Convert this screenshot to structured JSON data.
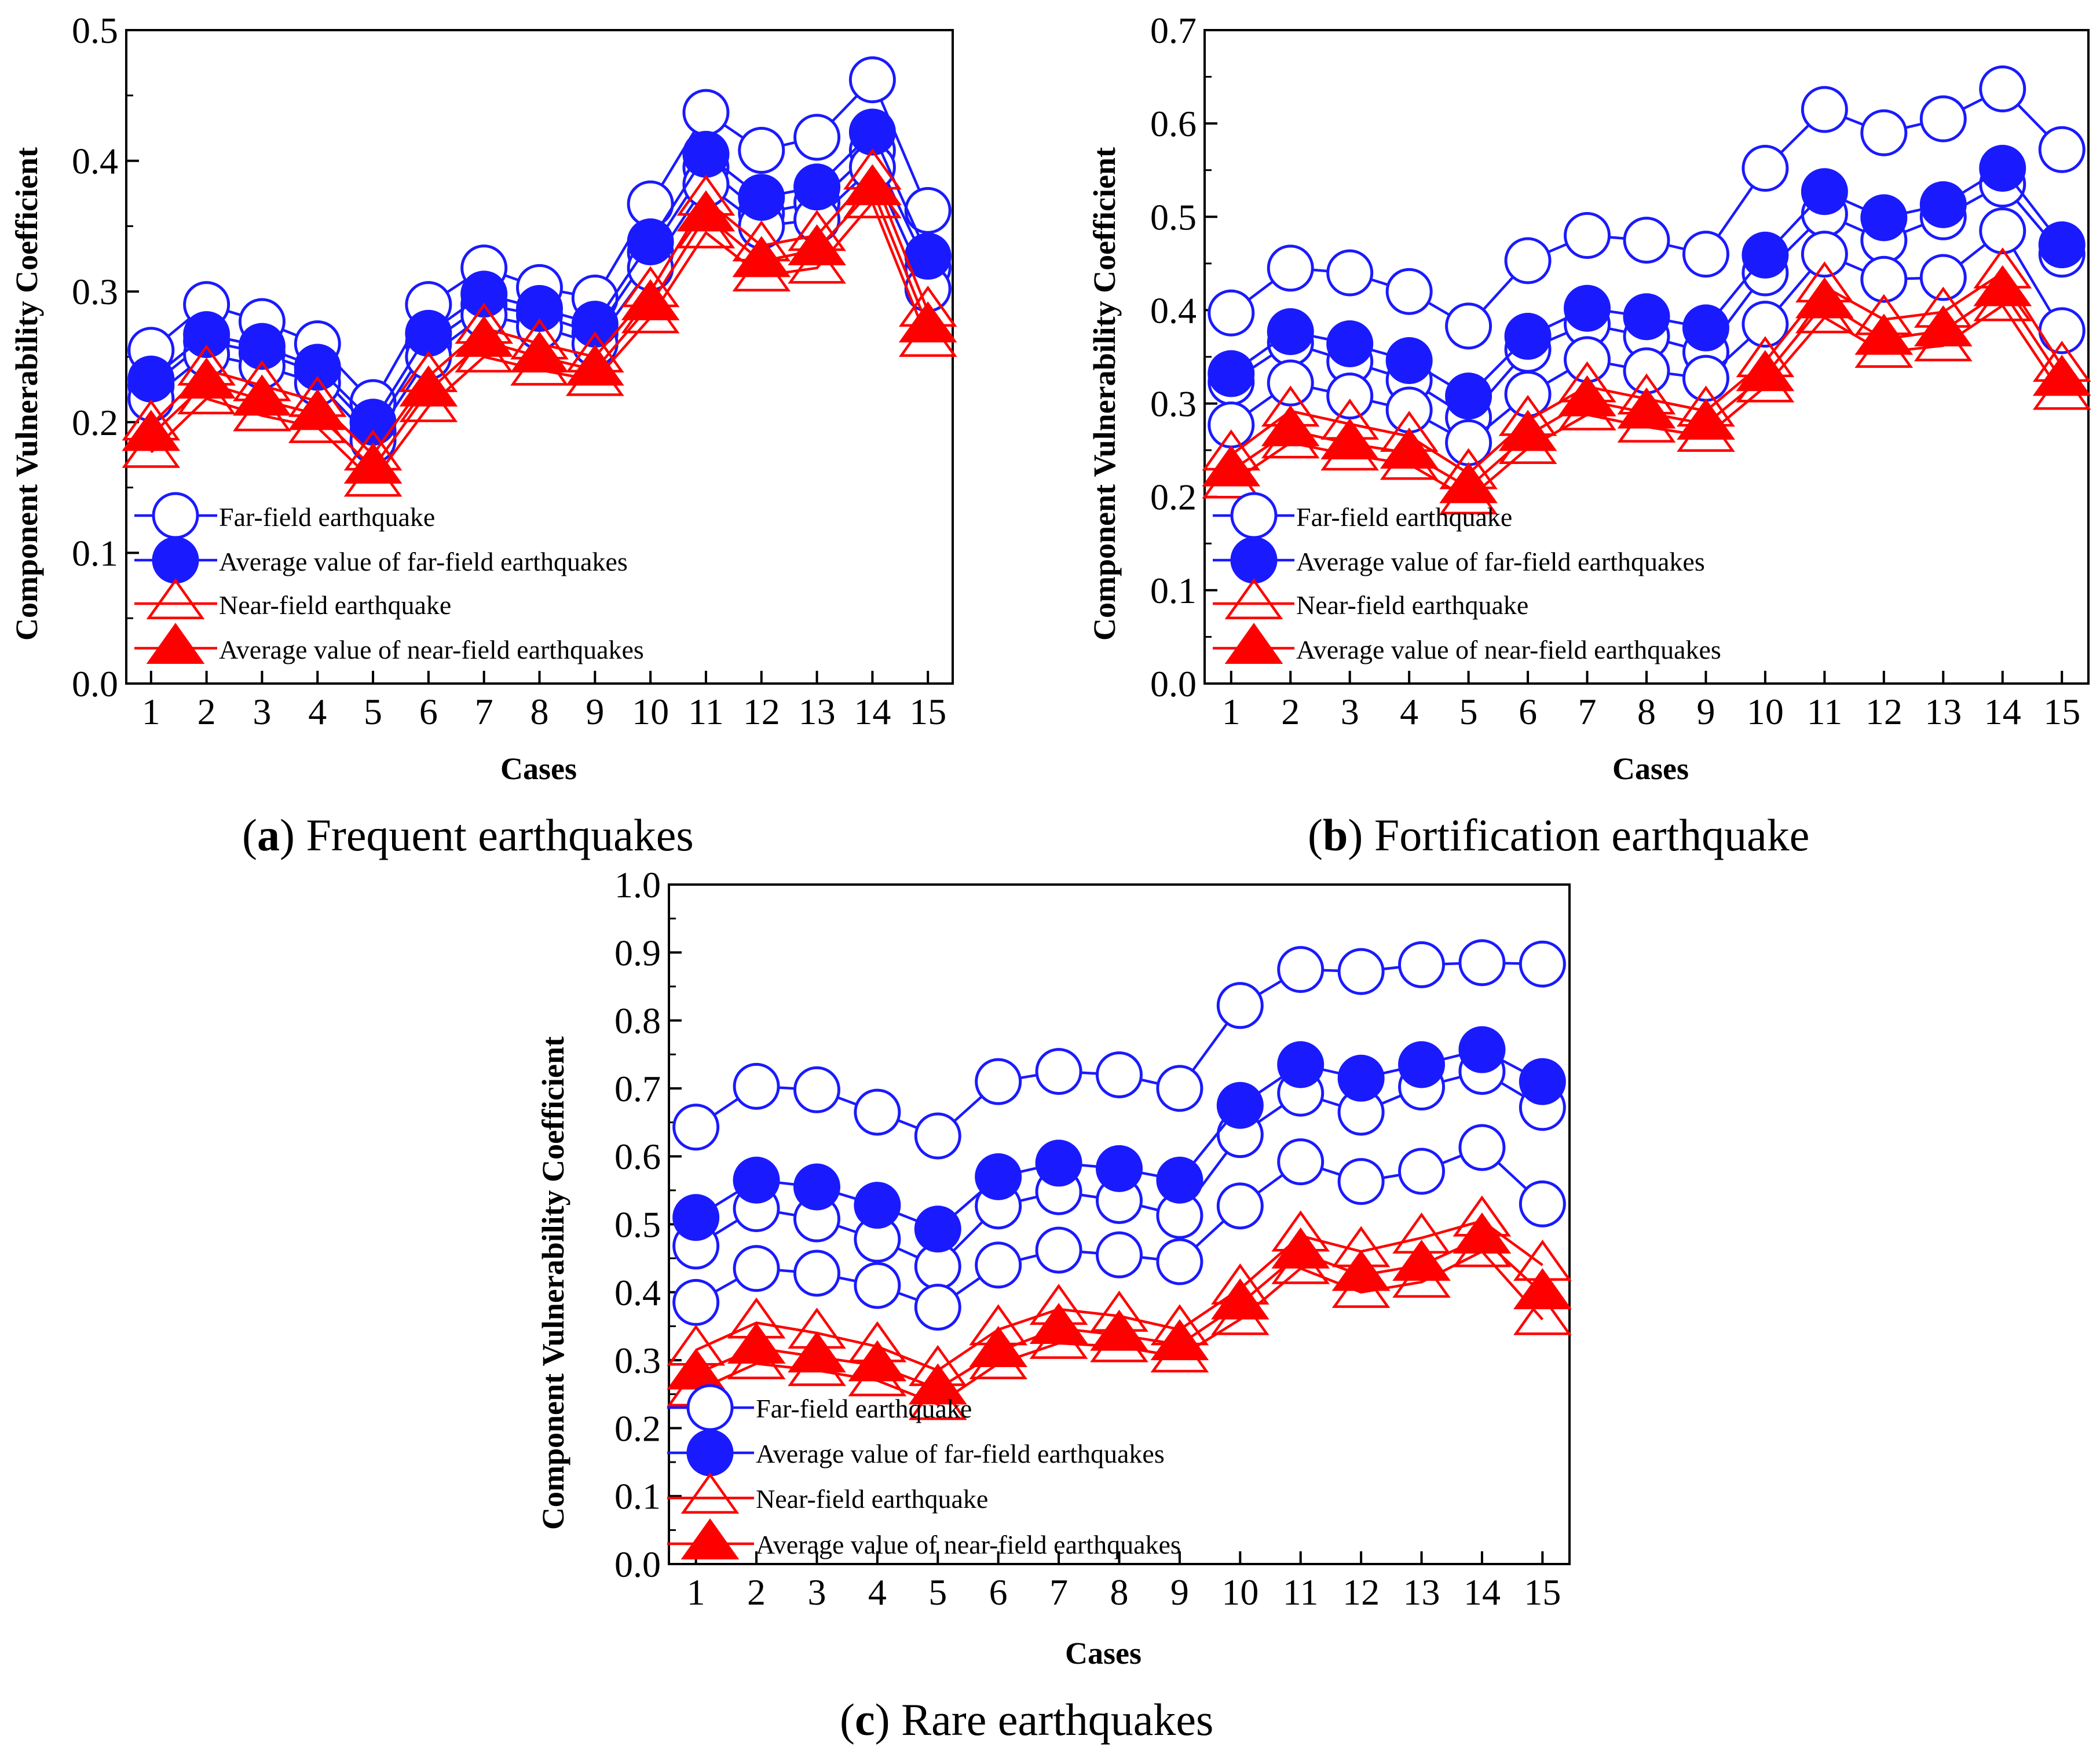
{
  "colors": {
    "far": "#1a1aff",
    "near": "#ff0000",
    "axis": "#000000"
  },
  "legend": [
    {
      "label": "Far-field earthquake",
      "kind": "far",
      "marker": "open-circle"
    },
    {
      "label": "Average value of far-field earthquakes",
      "kind": "far",
      "marker": "filled-circle"
    },
    {
      "label": "Near-field earthquake",
      "kind": "near",
      "marker": "open-triangle"
    },
    {
      "label": "Average value of near-field earthquakes",
      "kind": "near",
      "marker": "filled-triangle"
    }
  ],
  "chart_data": [
    {
      "type": "line",
      "caption": {
        "letter": "a",
        "text": ") Frequent earthquakes"
      },
      "xlabel": "Cases",
      "ylabel": "Component Vulnerability Coefficient",
      "categories": [
        1,
        2,
        3,
        4,
        5,
        6,
        7,
        8,
        9,
        10,
        11,
        12,
        13,
        14,
        15
      ],
      "ylim": [
        0,
        0.5
      ],
      "yticks": [
        "0.0",
        "0.1",
        "0.2",
        "0.3",
        "0.4",
        "0.5"
      ],
      "series": [
        {
          "name": "Far-field earthquake",
          "kind": "far",
          "marker": "open-circle",
          "values": [
            0.255,
            0.29,
            0.277,
            0.26,
            0.215,
            0.29,
            0.318,
            0.303,
            0.295,
            0.367,
            0.437,
            0.408,
            0.418,
            0.462,
            0.362
          ]
        },
        {
          "name": "Far-field earthquake",
          "kind": "far",
          "marker": "open-circle",
          "values": [
            0.228,
            0.262,
            0.253,
            0.238,
            0.193,
            0.26,
            0.29,
            0.282,
            0.268,
            0.33,
            0.395,
            0.36,
            0.368,
            0.408,
            0.318
          ]
        },
        {
          "name": "Far-field earthquake",
          "kind": "far",
          "marker": "open-circle",
          "values": [
            0.218,
            0.252,
            0.243,
            0.23,
            0.186,
            0.25,
            0.282,
            0.273,
            0.26,
            0.318,
            0.382,
            0.35,
            0.355,
            0.395,
            0.302
          ]
        },
        {
          "name": "Average value of far-field earthquakes",
          "kind": "far",
          "marker": "filled-circle",
          "values": [
            0.233,
            0.267,
            0.258,
            0.242,
            0.2,
            0.268,
            0.298,
            0.287,
            0.275,
            0.338,
            0.405,
            0.372,
            0.38,
            0.422,
            0.327
          ]
        },
        {
          "name": "Near-field earthquake",
          "kind": "near",
          "marker": "open-triangle",
          "values": [
            0.198,
            0.24,
            0.228,
            0.216,
            0.175,
            0.235,
            0.272,
            0.26,
            0.25,
            0.3,
            0.37,
            0.335,
            0.343,
            0.39,
            0.285
          ]
        },
        {
          "name": "Near-field earthquake",
          "kind": "near",
          "marker": "open-triangle",
          "values": [
            0.177,
            0.218,
            0.205,
            0.196,
            0.155,
            0.212,
            0.25,
            0.24,
            0.232,
            0.28,
            0.345,
            0.312,
            0.318,
            0.368,
            0.262
          ]
        },
        {
          "name": "Average value of near-field earthquakes",
          "kind": "near",
          "marker": "filled-triangle",
          "values": [
            0.19,
            0.23,
            0.217,
            0.206,
            0.165,
            0.224,
            0.262,
            0.25,
            0.24,
            0.29,
            0.358,
            0.323,
            0.332,
            0.378,
            0.273
          ]
        }
      ]
    },
    {
      "type": "line",
      "caption": {
        "letter": "b",
        "text": ") Fortification earthquake"
      },
      "xlabel": "Cases",
      "ylabel": "Component Vulnerability Coefficient",
      "categories": [
        1,
        2,
        3,
        4,
        5,
        6,
        7,
        8,
        9,
        10,
        11,
        12,
        13,
        14,
        15
      ],
      "ylim": [
        0,
        0.7
      ],
      "yticks": [
        "0.0",
        "0.1",
        "0.2",
        "0.3",
        "0.4",
        "0.5",
        "0.6",
        "0.7"
      ],
      "series": [
        {
          "name": "Far-field earthquake",
          "kind": "far",
          "marker": "open-circle",
          "values": [
            0.397,
            0.445,
            0.44,
            0.42,
            0.383,
            0.453,
            0.48,
            0.475,
            0.46,
            0.552,
            0.615,
            0.59,
            0.605,
            0.637,
            0.572
          ]
        },
        {
          "name": "Far-field earthquake",
          "kind": "far",
          "marker": "open-circle",
          "values": [
            0.323,
            0.365,
            0.345,
            0.325,
            0.285,
            0.358,
            0.385,
            0.372,
            0.355,
            0.44,
            0.503,
            0.475,
            0.5,
            0.535,
            0.46
          ]
        },
        {
          "name": "Far-field earthquake",
          "kind": "far",
          "marker": "open-circle",
          "values": [
            0.277,
            0.322,
            0.308,
            0.293,
            0.258,
            0.31,
            0.347,
            0.335,
            0.327,
            0.385,
            0.46,
            0.433,
            0.435,
            0.485,
            0.378
          ]
        },
        {
          "name": "Average value of far-field earthquakes",
          "kind": "far",
          "marker": "filled-circle",
          "values": [
            0.332,
            0.377,
            0.364,
            0.346,
            0.308,
            0.372,
            0.402,
            0.393,
            0.381,
            0.459,
            0.527,
            0.499,
            0.513,
            0.552,
            0.47
          ]
        },
        {
          "name": "Near-field earthquake",
          "kind": "near",
          "marker": "open-triangle",
          "values": [
            0.245,
            0.292,
            0.278,
            0.265,
            0.225,
            0.282,
            0.318,
            0.305,
            0.292,
            0.345,
            0.425,
            0.39,
            0.398,
            0.44,
            0.34
          ]
        },
        {
          "name": "Near-field earthquake",
          "kind": "near",
          "marker": "open-triangle",
          "values": [
            0.215,
            0.258,
            0.245,
            0.235,
            0.198,
            0.252,
            0.288,
            0.275,
            0.265,
            0.318,
            0.392,
            0.355,
            0.362,
            0.405,
            0.31
          ]
        },
        {
          "name": "Average value of near-field earthquakes",
          "kind": "near",
          "marker": "filled-triangle",
          "values": [
            0.228,
            0.271,
            0.257,
            0.247,
            0.21,
            0.266,
            0.303,
            0.29,
            0.278,
            0.33,
            0.408,
            0.369,
            0.378,
            0.421,
            0.325
          ]
        }
      ]
    },
    {
      "type": "line",
      "caption": {
        "letter": "c",
        "text": ") Rare earthquakes"
      },
      "xlabel": "Cases",
      "ylabel": "Component Vulnerability Coefficient",
      "categories": [
        1,
        2,
        3,
        4,
        5,
        6,
        7,
        8,
        9,
        10,
        11,
        12,
        13,
        14,
        15
      ],
      "ylim": [
        0,
        1.0
      ],
      "yticks": [
        "0.0",
        "0.1",
        "0.2",
        "0.3",
        "0.4",
        "0.5",
        "0.6",
        "0.7",
        "0.8",
        "0.9",
        "1.0"
      ],
      "series": [
        {
          "name": "Far-field earthquake",
          "kind": "far",
          "marker": "open-circle",
          "values": [
            0.643,
            0.703,
            0.698,
            0.665,
            0.63,
            0.71,
            0.725,
            0.72,
            0.7,
            0.822,
            0.875,
            0.872,
            0.882,
            0.885,
            0.883
          ]
        },
        {
          "name": "Far-field earthquake",
          "kind": "far",
          "marker": "open-circle",
          "values": [
            0.468,
            0.523,
            0.508,
            0.478,
            0.438,
            0.527,
            0.548,
            0.535,
            0.513,
            0.632,
            0.693,
            0.665,
            0.702,
            0.725,
            0.672
          ]
        },
        {
          "name": "Far-field earthquake",
          "kind": "far",
          "marker": "open-circle",
          "values": [
            0.385,
            0.435,
            0.428,
            0.41,
            0.378,
            0.44,
            0.462,
            0.455,
            0.445,
            0.527,
            0.592,
            0.563,
            0.578,
            0.613,
            0.53
          ]
        },
        {
          "name": "Average value of far-field earthquakes",
          "kind": "far",
          "marker": "filled-circle",
          "values": [
            0.51,
            0.565,
            0.555,
            0.528,
            0.493,
            0.57,
            0.59,
            0.582,
            0.565,
            0.675,
            0.735,
            0.715,
            0.735,
            0.757,
            0.71
          ]
        },
        {
          "name": "Near-field earthquake",
          "kind": "near",
          "marker": "open-triangle",
          "values": [
            0.315,
            0.355,
            0.34,
            0.32,
            0.285,
            0.345,
            0.375,
            0.365,
            0.345,
            0.405,
            0.483,
            0.46,
            0.48,
            0.505,
            0.44
          ]
        },
        {
          "name": "Near-field earthquake",
          "kind": "near",
          "marker": "open-triangle",
          "values": [
            0.255,
            0.295,
            0.285,
            0.27,
            0.235,
            0.295,
            0.325,
            0.32,
            0.305,
            0.36,
            0.435,
            0.4,
            0.415,
            0.46,
            0.36
          ]
        },
        {
          "name": "Average value of near-field earthquakes",
          "kind": "near",
          "marker": "filled-triangle",
          "values": [
            0.28,
            0.318,
            0.305,
            0.292,
            0.258,
            0.313,
            0.347,
            0.337,
            0.323,
            0.383,
            0.458,
            0.425,
            0.44,
            0.48,
            0.398
          ]
        }
      ]
    }
  ]
}
